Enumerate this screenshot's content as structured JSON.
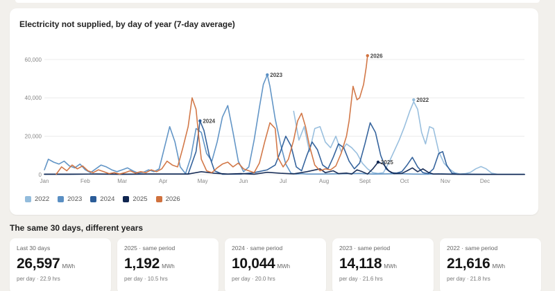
{
  "chart_data": {
    "type": "line",
    "title": "Electricity not supplied, by day of year (7-day average)",
    "x_tick_labels": [
      "Jan",
      "Feb",
      "Mar",
      "Apr",
      "May",
      "Jun",
      "Jul",
      "Aug",
      "Sept",
      "Oct",
      "Nov",
      "Dec"
    ],
    "y_tick_labels": [
      "0",
      "20,000",
      "40,000",
      "60,000"
    ],
    "ylim": [
      0,
      65000
    ],
    "xlim": [
      1,
      365
    ],
    "grid": true,
    "legend_position": "bottom-left",
    "series": [
      {
        "name": "2022",
        "color": "#93bcdc",
        "end_label": "2022",
        "points": [
          [
            190,
            33000
          ],
          [
            194,
            18000
          ],
          [
            198,
            25000
          ],
          [
            202,
            12000
          ],
          [
            206,
            24000
          ],
          [
            210,
            25000
          ],
          [
            214,
            17000
          ],
          [
            218,
            14000
          ],
          [
            222,
            20000
          ],
          [
            226,
            12000
          ],
          [
            230,
            16000
          ],
          [
            234,
            14000
          ],
          [
            238,
            11000
          ],
          [
            242,
            6000
          ],
          [
            246,
            3000
          ],
          [
            250,
            1000
          ],
          [
            254,
            600
          ],
          [
            258,
            1000
          ],
          [
            262,
            6000
          ],
          [
            266,
            12000
          ],
          [
            270,
            18000
          ],
          [
            274,
            25000
          ],
          [
            278,
            33000
          ],
          [
            281,
            38000
          ],
          [
            284,
            34000
          ],
          [
            287,
            22000
          ],
          [
            290,
            16000
          ],
          [
            293,
            25000
          ],
          [
            296,
            24000
          ],
          [
            300,
            12000
          ],
          [
            304,
            6000
          ],
          [
            308,
            3000
          ],
          [
            312,
            1000
          ],
          [
            316,
            300
          ],
          [
            320,
            500
          ],
          [
            324,
            1200
          ],
          [
            328,
            3000
          ],
          [
            332,
            4200
          ],
          [
            336,
            3000
          ],
          [
            340,
            800
          ],
          [
            344,
            200
          ]
        ]
      },
      {
        "name": "2023",
        "color": "#5a8fc3",
        "end_label": "2023",
        "points": [
          [
            1,
            2500
          ],
          [
            4,
            8000
          ],
          [
            8,
            6500
          ],
          [
            12,
            5500
          ],
          [
            16,
            7000
          ],
          [
            20,
            4500
          ],
          [
            24,
            3500
          ],
          [
            28,
            5500
          ],
          [
            32,
            2500
          ],
          [
            36,
            1000
          ],
          [
            40,
            3000
          ],
          [
            44,
            5000
          ],
          [
            48,
            4000
          ],
          [
            52,
            2500
          ],
          [
            56,
            1500
          ],
          [
            60,
            2500
          ],
          [
            64,
            3500
          ],
          [
            68,
            2000
          ],
          [
            72,
            800
          ],
          [
            76,
            1200
          ],
          [
            80,
            2500
          ],
          [
            84,
            1500
          ],
          [
            88,
            3000
          ],
          [
            92,
            14000
          ],
          [
            96,
            25000
          ],
          [
            100,
            17000
          ],
          [
            104,
            4000
          ],
          [
            108,
            500
          ],
          [
            112,
            9000
          ],
          [
            116,
            24000
          ],
          [
            120,
            22000
          ],
          [
            124,
            11000
          ],
          [
            128,
            7000
          ],
          [
            132,
            17000
          ],
          [
            136,
            30000
          ],
          [
            140,
            36000
          ],
          [
            144,
            22000
          ],
          [
            148,
            7000
          ],
          [
            152,
            1500
          ],
          [
            156,
            4000
          ],
          [
            160,
            18000
          ],
          [
            164,
            35000
          ],
          [
            167,
            47000
          ],
          [
            170,
            52000
          ],
          [
            172,
            46000
          ],
          [
            176,
            29000
          ],
          [
            180,
            16000
          ],
          [
            184,
            5500
          ],
          [
            188,
            700
          ],
          [
            192,
            300
          ],
          [
            196,
            500
          ],
          [
            200,
            300
          ],
          [
            210,
            300
          ],
          [
            220,
            400
          ],
          [
            240,
            600
          ],
          [
            250,
            300
          ],
          [
            260,
            400
          ],
          [
            270,
            500
          ],
          [
            280,
            300
          ],
          [
            290,
            200
          ],
          [
            300,
            400
          ],
          [
            310,
            300
          ],
          [
            320,
            200
          ],
          [
            330,
            200
          ],
          [
            340,
            100
          ],
          [
            365,
            100
          ]
        ]
      },
      {
        "name": "2024",
        "color": "#2b5c98",
        "end_label": "2024",
        "points": [
          [
            1,
            200
          ],
          [
            20,
            200
          ],
          [
            40,
            300
          ],
          [
            60,
            200
          ],
          [
            80,
            300
          ],
          [
            100,
            300
          ],
          [
            110,
            300
          ],
          [
            116,
            12000
          ],
          [
            119,
            28000
          ],
          [
            122,
            23000
          ],
          [
            126,
            10000
          ],
          [
            130,
            2000
          ],
          [
            136,
            200
          ],
          [
            150,
            300
          ],
          [
            160,
            1000
          ],
          [
            170,
            2500
          ],
          [
            176,
            5000
          ],
          [
            180,
            12000
          ],
          [
            184,
            20000
          ],
          [
            188,
            15000
          ],
          [
            192,
            4000
          ],
          [
            196,
            2000
          ],
          [
            200,
            10000
          ],
          [
            204,
            17000
          ],
          [
            208,
            13000
          ],
          [
            212,
            5000
          ],
          [
            216,
            3000
          ],
          [
            220,
            9000
          ],
          [
            224,
            16000
          ],
          [
            228,
            14000
          ],
          [
            232,
            7000
          ],
          [
            236,
            3000
          ],
          [
            240,
            6000
          ],
          [
            244,
            16000
          ],
          [
            248,
            27000
          ],
          [
            252,
            22000
          ],
          [
            256,
            10000
          ],
          [
            260,
            3000
          ],
          [
            264,
            1000
          ],
          [
            268,
            800
          ],
          [
            272,
            1500
          ],
          [
            276,
            5000
          ],
          [
            280,
            9000
          ],
          [
            284,
            4000
          ],
          [
            288,
            1000
          ],
          [
            292,
            500
          ],
          [
            296,
            3000
          ],
          [
            300,
            11000
          ],
          [
            303,
            12000
          ],
          [
            306,
            5000
          ],
          [
            310,
            800
          ],
          [
            314,
            200
          ],
          [
            330,
            100
          ],
          [
            365,
            100
          ]
        ]
      },
      {
        "name": "2025",
        "color": "#0f2550",
        "end_label": "2025",
        "points": [
          [
            1,
            200
          ],
          [
            20,
            200
          ],
          [
            40,
            300
          ],
          [
            60,
            200
          ],
          [
            80,
            300
          ],
          [
            100,
            300
          ],
          [
            110,
            300
          ],
          [
            120,
            1500
          ],
          [
            130,
            700
          ],
          [
            140,
            300
          ],
          [
            150,
            500
          ],
          [
            160,
            200
          ],
          [
            170,
            1200
          ],
          [
            180,
            700
          ],
          [
            190,
            400
          ],
          [
            200,
            1500
          ],
          [
            210,
            3000
          ],
          [
            214,
            1000
          ],
          [
            220,
            2000
          ],
          [
            224,
            500
          ],
          [
            230,
            800
          ],
          [
            234,
            300
          ],
          [
            238,
            2500
          ],
          [
            242,
            1500
          ],
          [
            246,
            300
          ],
          [
            250,
            3000
          ],
          [
            254,
            6500
          ],
          [
            258,
            5500
          ],
          [
            262,
            2000
          ],
          [
            266,
            500
          ],
          [
            272,
            600
          ],
          [
            276,
            2000
          ],
          [
            280,
            3500
          ],
          [
            284,
            1500
          ],
          [
            288,
            3000
          ],
          [
            292,
            1200
          ],
          [
            296,
            300
          ],
          [
            300,
            300
          ],
          [
            310,
            200
          ],
          [
            330,
            100
          ],
          [
            365,
            100
          ]
        ]
      },
      {
        "name": "2026",
        "color": "#d0713e",
        "end_label": "2026",
        "points": [
          [
            10,
            200
          ],
          [
            14,
            4000
          ],
          [
            18,
            2000
          ],
          [
            22,
            5000
          ],
          [
            26,
            3000
          ],
          [
            30,
            4500
          ],
          [
            34,
            2000
          ],
          [
            38,
            1000
          ],
          [
            42,
            2500
          ],
          [
            46,
            1500
          ],
          [
            50,
            500
          ],
          [
            54,
            1000
          ],
          [
            58,
            300
          ],
          [
            62,
            1000
          ],
          [
            66,
            2000
          ],
          [
            70,
            800
          ],
          [
            74,
            1500
          ],
          [
            78,
            1000
          ],
          [
            82,
            2500
          ],
          [
            86,
            1500
          ],
          [
            90,
            3000
          ],
          [
            94,
            7000
          ],
          [
            98,
            5000
          ],
          [
            102,
            4000
          ],
          [
            106,
            14000
          ],
          [
            110,
            25000
          ],
          [
            113,
            40000
          ],
          [
            116,
            34000
          ],
          [
            118,
            20000
          ],
          [
            120,
            8000
          ],
          [
            124,
            2000
          ],
          [
            128,
            1000
          ],
          [
            132,
            3500
          ],
          [
            136,
            5500
          ],
          [
            140,
            6500
          ],
          [
            144,
            4000
          ],
          [
            148,
            6000
          ],
          [
            152,
            3000
          ],
          [
            156,
            2000
          ],
          [
            160,
            1000
          ],
          [
            164,
            6000
          ],
          [
            168,
            17000
          ],
          [
            172,
            27000
          ],
          [
            176,
            24000
          ],
          [
            178,
            9000
          ],
          [
            182,
            4000
          ],
          [
            186,
            8000
          ],
          [
            190,
            18000
          ],
          [
            193,
            28000
          ],
          [
            196,
            32000
          ],
          [
            199,
            25000
          ],
          [
            202,
            15000
          ],
          [
            206,
            5000
          ],
          [
            210,
            2000
          ],
          [
            214,
            3000
          ],
          [
            218,
            2500
          ],
          [
            222,
            4500
          ],
          [
            226,
            11000
          ],
          [
            230,
            20000
          ],
          [
            232,
            28000
          ],
          [
            235,
            46000
          ],
          [
            238,
            39000
          ],
          [
            240,
            40000
          ],
          [
            243,
            47000
          ],
          [
            245,
            56000
          ],
          [
            246,
            62000
          ]
        ]
      }
    ],
    "annotations": [
      {
        "label": "2026",
        "x": 246,
        "y": 62000
      },
      {
        "label": "2023",
        "x": 170,
        "y": 52000
      },
      {
        "label": "2022",
        "x": 281,
        "y": 39000
      },
      {
        "label": "2024",
        "x": 119,
        "y": 28000
      },
      {
        "label": "2025",
        "x": 254,
        "y": 6500
      }
    ]
  },
  "legend": [
    {
      "label": "2022",
      "color": "#93bcdc"
    },
    {
      "label": "2023",
      "color": "#5a8fc3"
    },
    {
      "label": "2024",
      "color": "#2b5c98"
    },
    {
      "label": "2025",
      "color": "#0f2550"
    },
    {
      "label": "2026",
      "color": "#d0713e"
    }
  ],
  "comparison": {
    "title": "The same 30 days, different years",
    "cards": [
      {
        "label": "Last 30 days",
        "value": "26,597",
        "unit": "MWh",
        "sub": "per day · 22.9 hrs"
      },
      {
        "label": "2025 · same period",
        "value": "1,192",
        "unit": "MWh",
        "sub": "per day · 10.5 hrs"
      },
      {
        "label": "2024 · same period",
        "value": "10,044",
        "unit": "MWh",
        "sub": "per day · 20.0 hrs"
      },
      {
        "label": "2023 · same period",
        "value": "14,118",
        "unit": "MWh",
        "sub": "per day · 21.6 hrs"
      },
      {
        "label": "2022 · same period",
        "value": "21,616",
        "unit": "MWh",
        "sub": "per day · 21.8 hrs"
      }
    ]
  }
}
